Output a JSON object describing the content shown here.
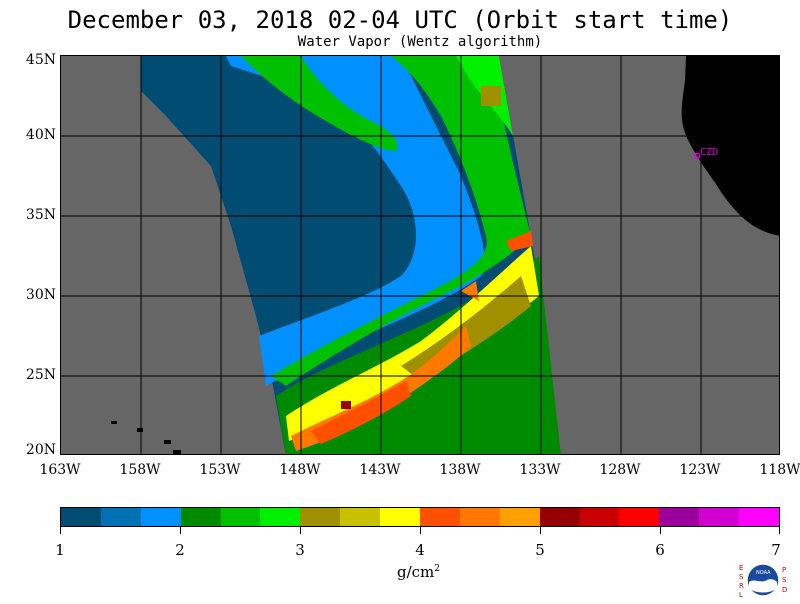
{
  "header": {
    "title": "December 03, 2018  02-04 UTC  (Orbit start time)",
    "subtitle": "Water Vapor (Wentz algorithm)"
  },
  "map": {
    "lat_labels": [
      "45N",
      "40N",
      "35N",
      "30N",
      "25N",
      "20N"
    ],
    "lon_labels": [
      "163W",
      "158W",
      "153W",
      "148W",
      "143W",
      "138W",
      "133W",
      "128W",
      "123W",
      "118W"
    ],
    "city_label": "CZD",
    "land_color": "#000000",
    "no_data_color": "#666666"
  },
  "colorbar": {
    "labels": [
      "1",
      "2",
      "3",
      "4",
      "5",
      "6",
      "7"
    ],
    "units_text": "g/cm",
    "units_sup": "2",
    "colors": [
      "#004c73",
      "#0072b4",
      "#0090ff",
      "#008a00",
      "#00c000",
      "#00f000",
      "#a09000",
      "#c8c000",
      "#ffff00",
      "#ff5000",
      "#ff7800",
      "#ffa000",
      "#960000",
      "#c80000",
      "#ff0000",
      "#9c009c",
      "#d000d0",
      "#ff00ff"
    ]
  },
  "logo": {
    "left_letters": "E S R L",
    "right_letters": "P S D",
    "center": "NOAA"
  }
}
